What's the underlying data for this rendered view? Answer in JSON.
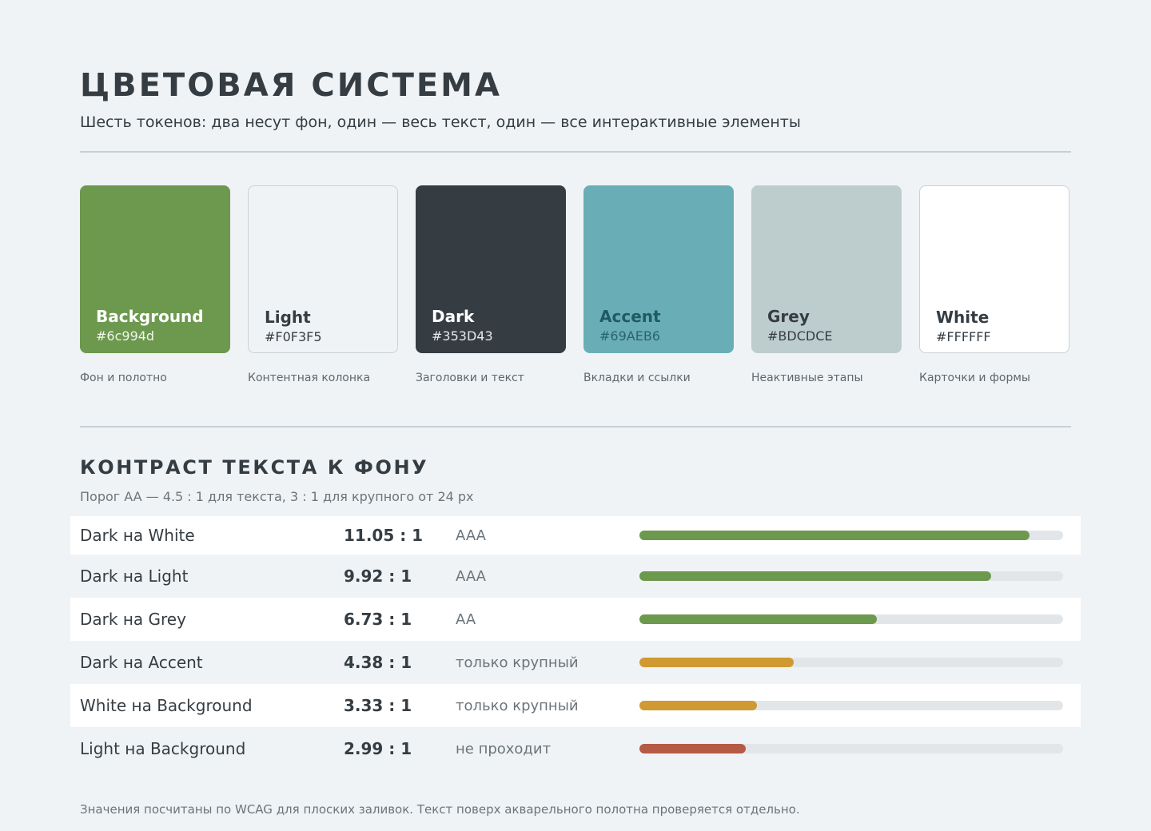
{
  "header": {
    "title": "ЦВЕТОВАЯ СИСТЕМА",
    "subtitle": "Шесть токенов: два несут фон, один — весь текст, один — все интерактивные элементы"
  },
  "swatches": [
    {
      "name": "Background",
      "hex": "#6c994d",
      "role": "Фон и полотно",
      "fill": "#6C994D",
      "text_color": "#FFFFFF",
      "hex_color": "#F2F5EE",
      "bordered": false
    },
    {
      "name": "Light",
      "hex": "#F0F3F5",
      "role": "Контентная колонка",
      "fill": "#F0F3F5",
      "text_color": "#353D43",
      "hex_color": "#353D43",
      "bordered": true
    },
    {
      "name": "Dark",
      "hex": "#353D43",
      "role": "Заголовки и текст",
      "fill": "#353D43",
      "text_color": "#FFFFFF",
      "hex_color": "#E6E9EB",
      "bordered": false
    },
    {
      "name": "Accent",
      "hex": "#69AEB6",
      "role": "Вкладки и ссылки",
      "fill": "#69AEB6",
      "text_color": "#1F5B63",
      "hex_color": "#2A646B",
      "bordered": false
    },
    {
      "name": "Grey",
      "hex": "#BDCDCE",
      "role": "Неактивные этапы",
      "fill": "#BDCDCE",
      "text_color": "#353D43",
      "hex_color": "#353D43",
      "bordered": false
    },
    {
      "name": "White",
      "hex": "#FFFFFF",
      "role": "Карточки и формы",
      "fill": "#FFFFFF",
      "text_color": "#353D43",
      "hex_color": "#353D43",
      "bordered": true
    }
  ],
  "contrast": {
    "title": "КОНТРАСТ ТЕКСТА К ФОНУ",
    "note": "Порог AA — 4.5 : 1 для текста, 3 : 1 для крупного от 24 px",
    "rows": [
      {
        "pair": "Dark на White",
        "ratio": "11.05 : 1",
        "level": "AAA",
        "fill_fraction": 0.92,
        "bar_color": "#6C994D"
      },
      {
        "pair": "Dark на Light",
        "ratio": "9.92 : 1",
        "level": "AAA",
        "fill_fraction": 0.83,
        "bar_color": "#6C994D"
      },
      {
        "pair": "Dark на Grey",
        "ratio": "6.73 : 1",
        "level": "AA",
        "fill_fraction": 0.56,
        "bar_color": "#6C994D"
      },
      {
        "pair": "Dark на Accent",
        "ratio": "4.38 : 1",
        "level": "только крупный",
        "fill_fraction": 0.365,
        "bar_color": "#CF9A32"
      },
      {
        "pair": "White на Background",
        "ratio": "3.33 : 1",
        "level": "только крупный",
        "fill_fraction": 0.278,
        "bar_color": "#CF9A32"
      },
      {
        "pair": "Light на Background",
        "ratio": "2.99 : 1",
        "level": "не проходит",
        "fill_fraction": 0.25,
        "bar_color": "#B55A44"
      }
    ]
  },
  "footnote": "Значения посчитаны по WCAG для плоских заливок. Текст поверх акварельного полотна проверяется отдельно."
}
